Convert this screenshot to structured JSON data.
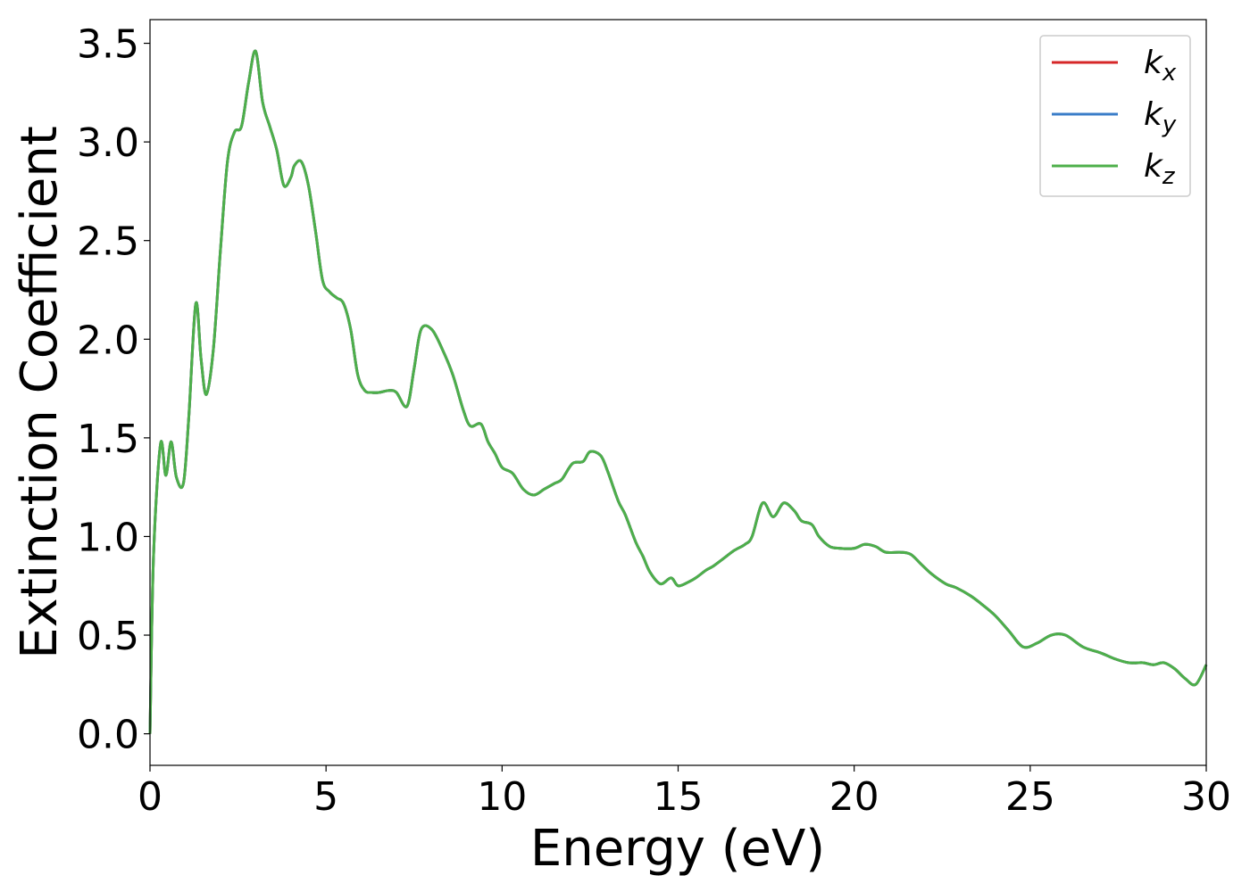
{
  "chart_data": {
    "type": "line",
    "title": "",
    "xlabel": "Energy (eV)",
    "ylabel": "Extinction Coefficient",
    "xlim": [
      0,
      30
    ],
    "ylim": [
      -0.16,
      3.62
    ],
    "xticks": [
      0,
      5,
      10,
      15,
      20,
      25,
      30
    ],
    "xtick_labels": [
      "0",
      "5",
      "10",
      "15",
      "20",
      "25",
      "30"
    ],
    "yticks": [
      0.0,
      0.5,
      1.0,
      1.5,
      2.0,
      2.5,
      3.0,
      3.5
    ],
    "ytick_labels": [
      "0.0",
      "0.5",
      "1.0",
      "1.5",
      "2.0",
      "2.5",
      "3.0",
      "3.5"
    ],
    "grid": false,
    "legend_position": "top-right",
    "x": [
      0,
      0.1,
      0.3,
      0.45,
      0.6,
      0.75,
      0.95,
      1.1,
      1.3,
      1.45,
      1.6,
      1.8,
      2.0,
      2.2,
      2.4,
      2.6,
      2.8,
      3.0,
      3.2,
      3.4,
      3.6,
      3.8,
      4.0,
      4.1,
      4.3,
      4.5,
      4.7,
      4.9,
      5.1,
      5.3,
      5.5,
      5.7,
      5.9,
      6.1,
      6.3,
      6.5,
      6.8,
      7.0,
      7.3,
      7.5,
      7.7,
      8.0,
      8.3,
      8.6,
      8.9,
      9.1,
      9.4,
      9.6,
      9.8,
      10.0,
      10.3,
      10.6,
      10.9,
      11.2,
      11.5,
      11.7,
      12.0,
      12.3,
      12.5,
      12.8,
      13.0,
      13.3,
      13.5,
      13.8,
      14.0,
      14.2,
      14.5,
      14.8,
      15.0,
      15.3,
      15.5,
      15.8,
      16.0,
      16.3,
      16.6,
      16.9,
      17.1,
      17.4,
      17.7,
      18.0,
      18.3,
      18.5,
      18.8,
      19.0,
      19.3,
      19.6,
      20.0,
      20.3,
      20.6,
      20.9,
      21.3,
      21.6,
      21.9,
      22.2,
      22.6,
      22.9,
      23.3,
      23.6,
      24.0,
      24.4,
      24.8,
      25.2,
      25.6,
      26.0,
      26.5,
      27.0,
      27.4,
      27.8,
      28.2,
      28.5,
      28.8,
      29.1,
      29.4,
      29.7,
      30.0
    ],
    "series": [
      {
        "name": "k_x",
        "label_base": "k",
        "label_sub": "x",
        "color": "#d62728",
        "values": [
          0.0,
          0.9,
          1.47,
          1.31,
          1.48,
          1.3,
          1.27,
          1.6,
          2.18,
          1.9,
          1.72,
          1.95,
          2.45,
          2.9,
          3.05,
          3.08,
          3.3,
          3.46,
          3.2,
          3.08,
          2.96,
          2.78,
          2.82,
          2.88,
          2.9,
          2.78,
          2.55,
          2.3,
          2.24,
          2.21,
          2.18,
          2.05,
          1.82,
          1.74,
          1.73,
          1.73,
          1.74,
          1.73,
          1.66,
          1.85,
          2.05,
          2.05,
          1.95,
          1.82,
          1.64,
          1.56,
          1.57,
          1.48,
          1.42,
          1.35,
          1.32,
          1.24,
          1.21,
          1.24,
          1.27,
          1.29,
          1.37,
          1.38,
          1.43,
          1.41,
          1.33,
          1.18,
          1.11,
          0.97,
          0.9,
          0.82,
          0.76,
          0.79,
          0.75,
          0.77,
          0.79,
          0.83,
          0.85,
          0.89,
          0.93,
          0.96,
          1.0,
          1.17,
          1.1,
          1.17,
          1.13,
          1.08,
          1.06,
          1.0,
          0.95,
          0.94,
          0.94,
          0.96,
          0.95,
          0.92,
          0.92,
          0.91,
          0.86,
          0.81,
          0.76,
          0.74,
          0.7,
          0.66,
          0.6,
          0.52,
          0.44,
          0.46,
          0.5,
          0.5,
          0.44,
          0.41,
          0.38,
          0.36,
          0.36,
          0.35,
          0.36,
          0.33,
          0.28,
          0.25,
          0.35
        ]
      },
      {
        "name": "k_y",
        "label_base": "k",
        "label_sub": "y",
        "color": "#3a7dc8",
        "values": [
          0.0,
          0.9,
          1.47,
          1.31,
          1.48,
          1.3,
          1.27,
          1.6,
          2.18,
          1.9,
          1.72,
          1.95,
          2.45,
          2.9,
          3.05,
          3.08,
          3.3,
          3.46,
          3.2,
          3.08,
          2.96,
          2.78,
          2.82,
          2.88,
          2.9,
          2.78,
          2.55,
          2.3,
          2.24,
          2.21,
          2.18,
          2.05,
          1.82,
          1.74,
          1.73,
          1.73,
          1.74,
          1.73,
          1.66,
          1.85,
          2.05,
          2.05,
          1.95,
          1.82,
          1.64,
          1.56,
          1.57,
          1.48,
          1.42,
          1.35,
          1.32,
          1.24,
          1.21,
          1.24,
          1.27,
          1.29,
          1.37,
          1.38,
          1.43,
          1.41,
          1.33,
          1.18,
          1.11,
          0.97,
          0.9,
          0.82,
          0.76,
          0.79,
          0.75,
          0.77,
          0.79,
          0.83,
          0.85,
          0.89,
          0.93,
          0.96,
          1.0,
          1.17,
          1.1,
          1.17,
          1.13,
          1.08,
          1.06,
          1.0,
          0.95,
          0.94,
          0.94,
          0.96,
          0.95,
          0.92,
          0.92,
          0.91,
          0.86,
          0.81,
          0.76,
          0.74,
          0.7,
          0.66,
          0.6,
          0.52,
          0.44,
          0.46,
          0.5,
          0.5,
          0.44,
          0.41,
          0.38,
          0.36,
          0.36,
          0.35,
          0.36,
          0.33,
          0.28,
          0.25,
          0.35
        ]
      },
      {
        "name": "k_z",
        "label_base": "k",
        "label_sub": "z",
        "color": "#4daf4a",
        "values": [
          0.0,
          0.9,
          1.47,
          1.31,
          1.48,
          1.3,
          1.27,
          1.6,
          2.18,
          1.9,
          1.72,
          1.95,
          2.45,
          2.9,
          3.05,
          3.08,
          3.3,
          3.46,
          3.2,
          3.08,
          2.96,
          2.78,
          2.82,
          2.88,
          2.9,
          2.78,
          2.55,
          2.3,
          2.24,
          2.21,
          2.18,
          2.05,
          1.82,
          1.74,
          1.73,
          1.73,
          1.74,
          1.73,
          1.66,
          1.85,
          2.05,
          2.05,
          1.95,
          1.82,
          1.64,
          1.56,
          1.57,
          1.48,
          1.42,
          1.35,
          1.32,
          1.24,
          1.21,
          1.24,
          1.27,
          1.29,
          1.37,
          1.38,
          1.43,
          1.41,
          1.33,
          1.18,
          1.11,
          0.97,
          0.9,
          0.82,
          0.76,
          0.79,
          0.75,
          0.77,
          0.79,
          0.83,
          0.85,
          0.89,
          0.93,
          0.96,
          1.0,
          1.17,
          1.1,
          1.17,
          1.13,
          1.08,
          1.06,
          1.0,
          0.95,
          0.94,
          0.94,
          0.96,
          0.95,
          0.92,
          0.92,
          0.91,
          0.86,
          0.81,
          0.76,
          0.74,
          0.7,
          0.66,
          0.6,
          0.52,
          0.44,
          0.46,
          0.5,
          0.5,
          0.44,
          0.41,
          0.38,
          0.36,
          0.36,
          0.35,
          0.36,
          0.33,
          0.28,
          0.25,
          0.35
        ]
      }
    ]
  }
}
